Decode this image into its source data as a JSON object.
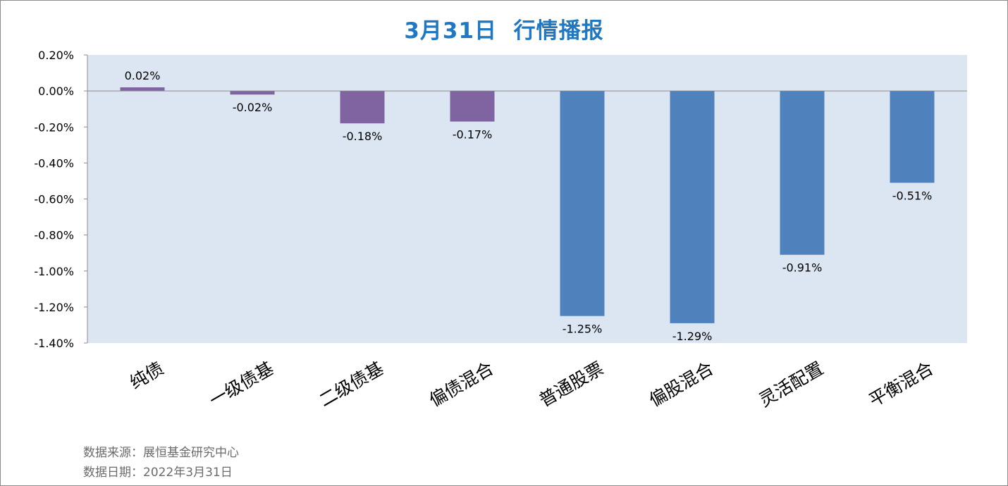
{
  "title": "3月31日  行情播报",
  "footer": {
    "source": "数据来源：展恒基金研究中心",
    "date": "数据日期：2022年3月31日"
  },
  "colors": {
    "title": "#1f78c1",
    "plot_background": "#dce6f2",
    "bond_bar": "#8064a2",
    "equity_bar": "#4f81bd",
    "footer_text": "#6b6b6b"
  },
  "chart_data": {
    "type": "bar",
    "title": "3月31日  行情播报",
    "categories": [
      "纯债",
      "一级债基",
      "二级债基",
      "偏债混合",
      "普通股票",
      "偏股混合",
      "灵活配置",
      "平衡混合"
    ],
    "values": [
      0.02,
      -0.02,
      -0.18,
      -0.17,
      -1.25,
      -1.29,
      -0.91,
      -0.51
    ],
    "data_labels": [
      "0.02%",
      "-0.02%",
      "-0.18%",
      "-0.17%",
      "-1.25%",
      "-1.29%",
      "-0.91%",
      "-0.51%"
    ],
    "bar_colors": [
      "#8064a2",
      "#8064a2",
      "#8064a2",
      "#8064a2",
      "#4f81bd",
      "#4f81bd",
      "#4f81bd",
      "#4f81bd"
    ],
    "y_ticks": [
      0.2,
      0.0,
      -0.2,
      -0.4,
      -0.6,
      -0.8,
      -1.0,
      -1.2,
      -1.4
    ],
    "y_tick_labels": [
      "0.20%",
      "0.00%",
      "-0.20%",
      "-0.40%",
      "-0.60%",
      "-0.80%",
      "-1.00%",
      "-1.20%",
      "-1.40%"
    ],
    "ylim": [
      -1.4,
      0.2
    ],
    "unit": "%",
    "grid": false,
    "legend": "none"
  }
}
